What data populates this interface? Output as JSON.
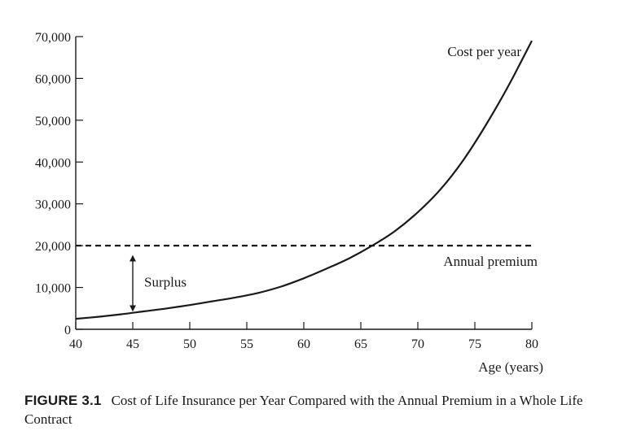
{
  "chart_data": {
    "type": "line",
    "title": "",
    "xlabel": "Age (years)",
    "ylabel": "",
    "xlim": [
      40,
      80
    ],
    "ylim": [
      0,
      70000
    ],
    "x_ticks": [
      40,
      45,
      50,
      55,
      60,
      65,
      70,
      75,
      80
    ],
    "x_tick_labels": [
      "40",
      "45",
      "50",
      "55",
      "60",
      "65",
      "70",
      "75",
      "80"
    ],
    "y_ticks": [
      0,
      10000,
      20000,
      30000,
      40000,
      50000,
      60000,
      70000
    ],
    "y_tick_labels": [
      "0",
      "10,000",
      "20,000",
      "30,000",
      "40,000",
      "50,000",
      "60,000",
      "70,000"
    ],
    "grid": false,
    "series": [
      {
        "name": "Cost per year",
        "color": "#1a1a1a",
        "x": [
          40,
          42,
          44,
          46,
          48,
          50,
          52,
          54,
          56,
          58,
          60,
          62,
          64,
          66,
          68,
          70,
          72,
          74,
          76,
          78,
          80
        ],
        "y": [
          2500,
          3000,
          3600,
          4300,
          5000,
          5800,
          6700,
          7600,
          8700,
          10200,
          12200,
          14500,
          17000,
          20000,
          23500,
          28000,
          33500,
          40500,
          49000,
          58500,
          69000
        ]
      },
      {
        "name": "Annual premium",
        "style": "dashed",
        "color": "#1a1a1a",
        "x": [
          40,
          80
        ],
        "y": [
          20000,
          20000
        ]
      }
    ],
    "annotations": [
      {
        "text": "Surplus",
        "type": "double-arrow",
        "x": 45,
        "y_from": 5000,
        "y_to": 17000
      }
    ]
  },
  "caption": {
    "label": "FIGURE 3.1",
    "text": "Cost of Life Insurance per Year Compared with the Annual Premium in a Whole Life Contract"
  }
}
